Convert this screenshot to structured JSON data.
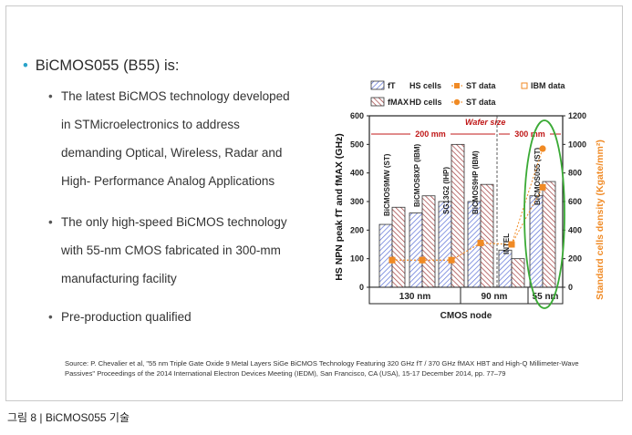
{
  "main_bullet": "BiCMOS055 (B55) is:",
  "sub_bullets": [
    "The latest BiCMOS technology developed\nin STMicroelectronics to address\ndemanding Optical, Wireless, Radar and\nHigh- Performance Analog Applications",
    "The only high-speed BiCMOS technology\nwith 55-nm CMOS fabricated in 300-mm\nmanufacturing facility",
    "Pre-production qualified"
  ],
  "source_text": "Source: P. Chevalier et al, \"55 nm Triple Gate Oxide 9 Metal Layers SiGe BiCMOS Technology Featuring 320 GHz fT / 370 GHz fMAX HBT and High-Q Millimeter-Wave Passives\" Proceedings of the 2014 International Electron Devices Meeting (IEDM), San Francisco, CA (USA), 15-17 December 2014, pp. 77–79",
  "caption": "그림 8 | BiCMOS055 기술",
  "colors": {
    "accent_bullet": "#29a3c9",
    "bar_blue": "#5a6fd6",
    "bar_red": "#a23a3a",
    "orange": "#f08a24",
    "wafer_red": "#c01818",
    "green": "#3aaa35"
  },
  "chart_data": {
    "type": "bar",
    "title": "",
    "ylabel": "HS NPN peak fT and fMAX (GHz)",
    "y2label": "Standard cells density (Kgate/mm²)",
    "xlabel": "CMOS node",
    "ylim": [
      0,
      600
    ],
    "y2lim": [
      0,
      1200
    ],
    "yticks": [
      "0",
      "100",
      "200",
      "300",
      "400",
      "500",
      "600"
    ],
    "y2ticks": [
      "0",
      "200",
      "400",
      "600",
      "800",
      "1000",
      "1200"
    ],
    "legend": {
      "ft": "fT",
      "hs": "HS cells",
      "st1": "ST data",
      "ibm": "IBM data",
      "fmax": "fMAX",
      "hd": "HD cells",
      "st2": "ST data"
    },
    "wafer_size_label": "Wafer size",
    "wafer_200": "200 mm",
    "wafer_300": "300 mm",
    "nodes": [
      "130 nm",
      "90 nm",
      "55 nm"
    ],
    "categories": [
      "BiCMOS9MW (ST)",
      "BiCMOS8XP (IBM)",
      "SG13G2 (IHP)",
      "BiCMOS9HP (IBM)",
      "INTEL",
      "BiCMOS055 (ST)"
    ],
    "series": [
      {
        "name": "fT",
        "values": [
          220,
          260,
          300,
          300,
          130,
          320
        ]
      },
      {
        "name": "fMAX",
        "values": [
          280,
          320,
          500,
          360,
          100,
          370
        ]
      }
    ],
    "hs_cells": [
      190,
      190,
      190,
      310,
      300,
      700
    ],
    "hd_cells": [
      190,
      190,
      190,
      310,
      300,
      970
    ]
  }
}
